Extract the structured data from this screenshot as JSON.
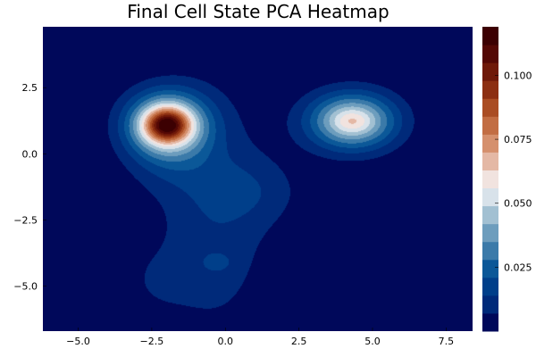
{
  "chart_data": {
    "type": "heatmap",
    "style": "filled-contour",
    "title": "Final Cell State PCA Heatmap",
    "xlabel": "",
    "ylabel": "",
    "xlim": [
      -6.2,
      8.4
    ],
    "ylim": [
      -6.7,
      4.8
    ],
    "x_ticks": [
      {
        "value": -5.0,
        "label": "−5.0"
      },
      {
        "value": -2.5,
        "label": "−2.5"
      },
      {
        "value": 0.0,
        "label": "0.0"
      },
      {
        "value": 2.5,
        "label": "2.5"
      },
      {
        "value": 5.0,
        "label": "5.0"
      },
      {
        "value": 7.5,
        "label": "7.5"
      }
    ],
    "y_ticks": [
      {
        "value": 2.5,
        "label": "2.5"
      },
      {
        "value": 0.0,
        "label": "0.0"
      },
      {
        "value": -2.5,
        "label": "−2.5"
      },
      {
        "value": -5.0,
        "label": "−5.0"
      }
    ],
    "colorbar": {
      "min": 0.0,
      "max": 0.119,
      "ticks": [
        {
          "value": 0.025,
          "label": "0.025"
        },
        {
          "value": 0.05,
          "label": "0.050"
        },
        {
          "value": 0.075,
          "label": "0.075"
        },
        {
          "value": 0.1,
          "label": "0.100"
        }
      ],
      "levels": 17,
      "colormap": "balance",
      "colors": [
        "#00085a",
        "#002a7a",
        "#003f8a",
        "#0b5898",
        "#3b7aa9",
        "#6d9dbd",
        "#a2c0d2",
        "#d8e2ea",
        "#f1e3df",
        "#e4b8a5",
        "#d5906d",
        "#c26d43",
        "#aa4d24",
        "#8c2f12",
        "#6f1909",
        "#540805",
        "#3c0002"
      ]
    },
    "density_components": [
      {
        "x": -2.0,
        "y": 1.1,
        "weight": 0.062,
        "sx": 0.95,
        "sy": 0.85
      },
      {
        "x": -2.0,
        "y": 1.1,
        "weight": 0.058,
        "sx": 0.5,
        "sy": 0.42
      },
      {
        "x": 4.3,
        "y": 1.25,
        "weight": 0.052,
        "sx": 1.05,
        "sy": 0.75
      },
      {
        "x": 4.3,
        "y": 1.25,
        "weight": 0.012,
        "sx": 0.45,
        "sy": 0.3
      },
      {
        "x": -0.4,
        "y": -2.4,
        "weight": 0.012,
        "sx": 1.4,
        "sy": 3.2
      },
      {
        "x": 1.0,
        "y": -1.4,
        "weight": 0.008,
        "sx": 1.2,
        "sy": 0.9
      },
      {
        "x": -1.8,
        "y": -0.6,
        "weight": 0.006,
        "sx": 1.2,
        "sy": 0.8
      },
      {
        "x": -0.3,
        "y": -4.1,
        "weight": 0.008,
        "sx": 0.35,
        "sy": 0.25
      },
      {
        "x": -2.5,
        "y": -4.8,
        "weight": 0.005,
        "sx": 0.9,
        "sy": 1.0
      }
    ]
  }
}
